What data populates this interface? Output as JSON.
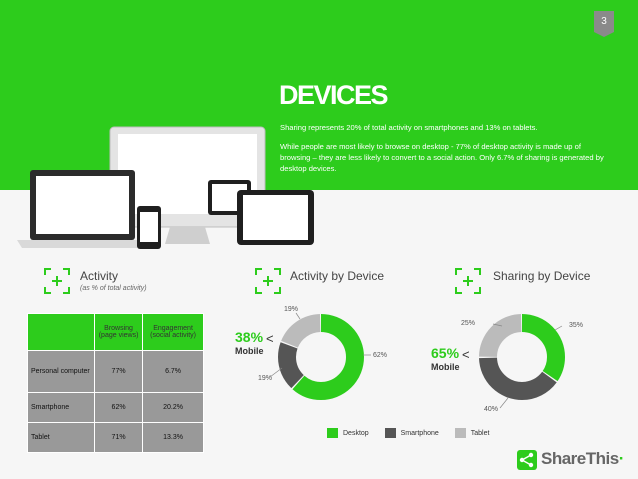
{
  "page_number": "3",
  "title": "DEVICES",
  "description": {
    "p1": "Sharing represents 20% of total activity on smartphones and 13% on tablets.",
    "p2": "While people are most likely to browse on desktop - 77% of desktop activity is made up of browsing – they are less likely to convert to a social action. Only 6.7% of sharing is generated by desktop devices."
  },
  "sections": {
    "activity": {
      "title": "Activity",
      "subtitle": "(as % of total activity)"
    },
    "activity_by_device": {
      "title": "Activity by Device"
    },
    "sharing_by_device": {
      "title": "Sharing by Device"
    }
  },
  "table": {
    "headers": [
      "",
      "Browsing (page views)",
      "Engagement (social activity)"
    ],
    "rows": [
      [
        "Personal computer",
        "77%",
        "6.7%"
      ],
      [
        "Smartphone",
        "62%",
        "20.2%"
      ],
      [
        "Tablet",
        "71%",
        "13.3%"
      ]
    ]
  },
  "callouts": {
    "activity": {
      "pct": "38%",
      "label": "Mobile",
      "arrow": "<"
    },
    "sharing": {
      "pct": "65%",
      "label": "Mobile",
      "arrow": "<"
    }
  },
  "colors": {
    "green": "#2dcc1c",
    "dark_gray": "#555555",
    "light_gray": "#bbbbbb"
  },
  "chart_data": [
    {
      "type": "pie",
      "title": "Activity by Device",
      "categories": [
        "Desktop",
        "Smartphone",
        "Tablet"
      ],
      "values": [
        62,
        19,
        19
      ],
      "labels": [
        "62%",
        "19%",
        "19%"
      ]
    },
    {
      "type": "pie",
      "title": "Sharing by Device",
      "categories": [
        "Desktop",
        "Smartphone",
        "Tablet"
      ],
      "values": [
        35,
        40,
        25
      ],
      "labels": [
        "35%",
        "40%",
        "25%"
      ]
    }
  ],
  "legend": [
    "Desktop",
    "Smartphone",
    "Tablet"
  ],
  "brand": {
    "name": "ShareThis",
    "mark": "·"
  }
}
